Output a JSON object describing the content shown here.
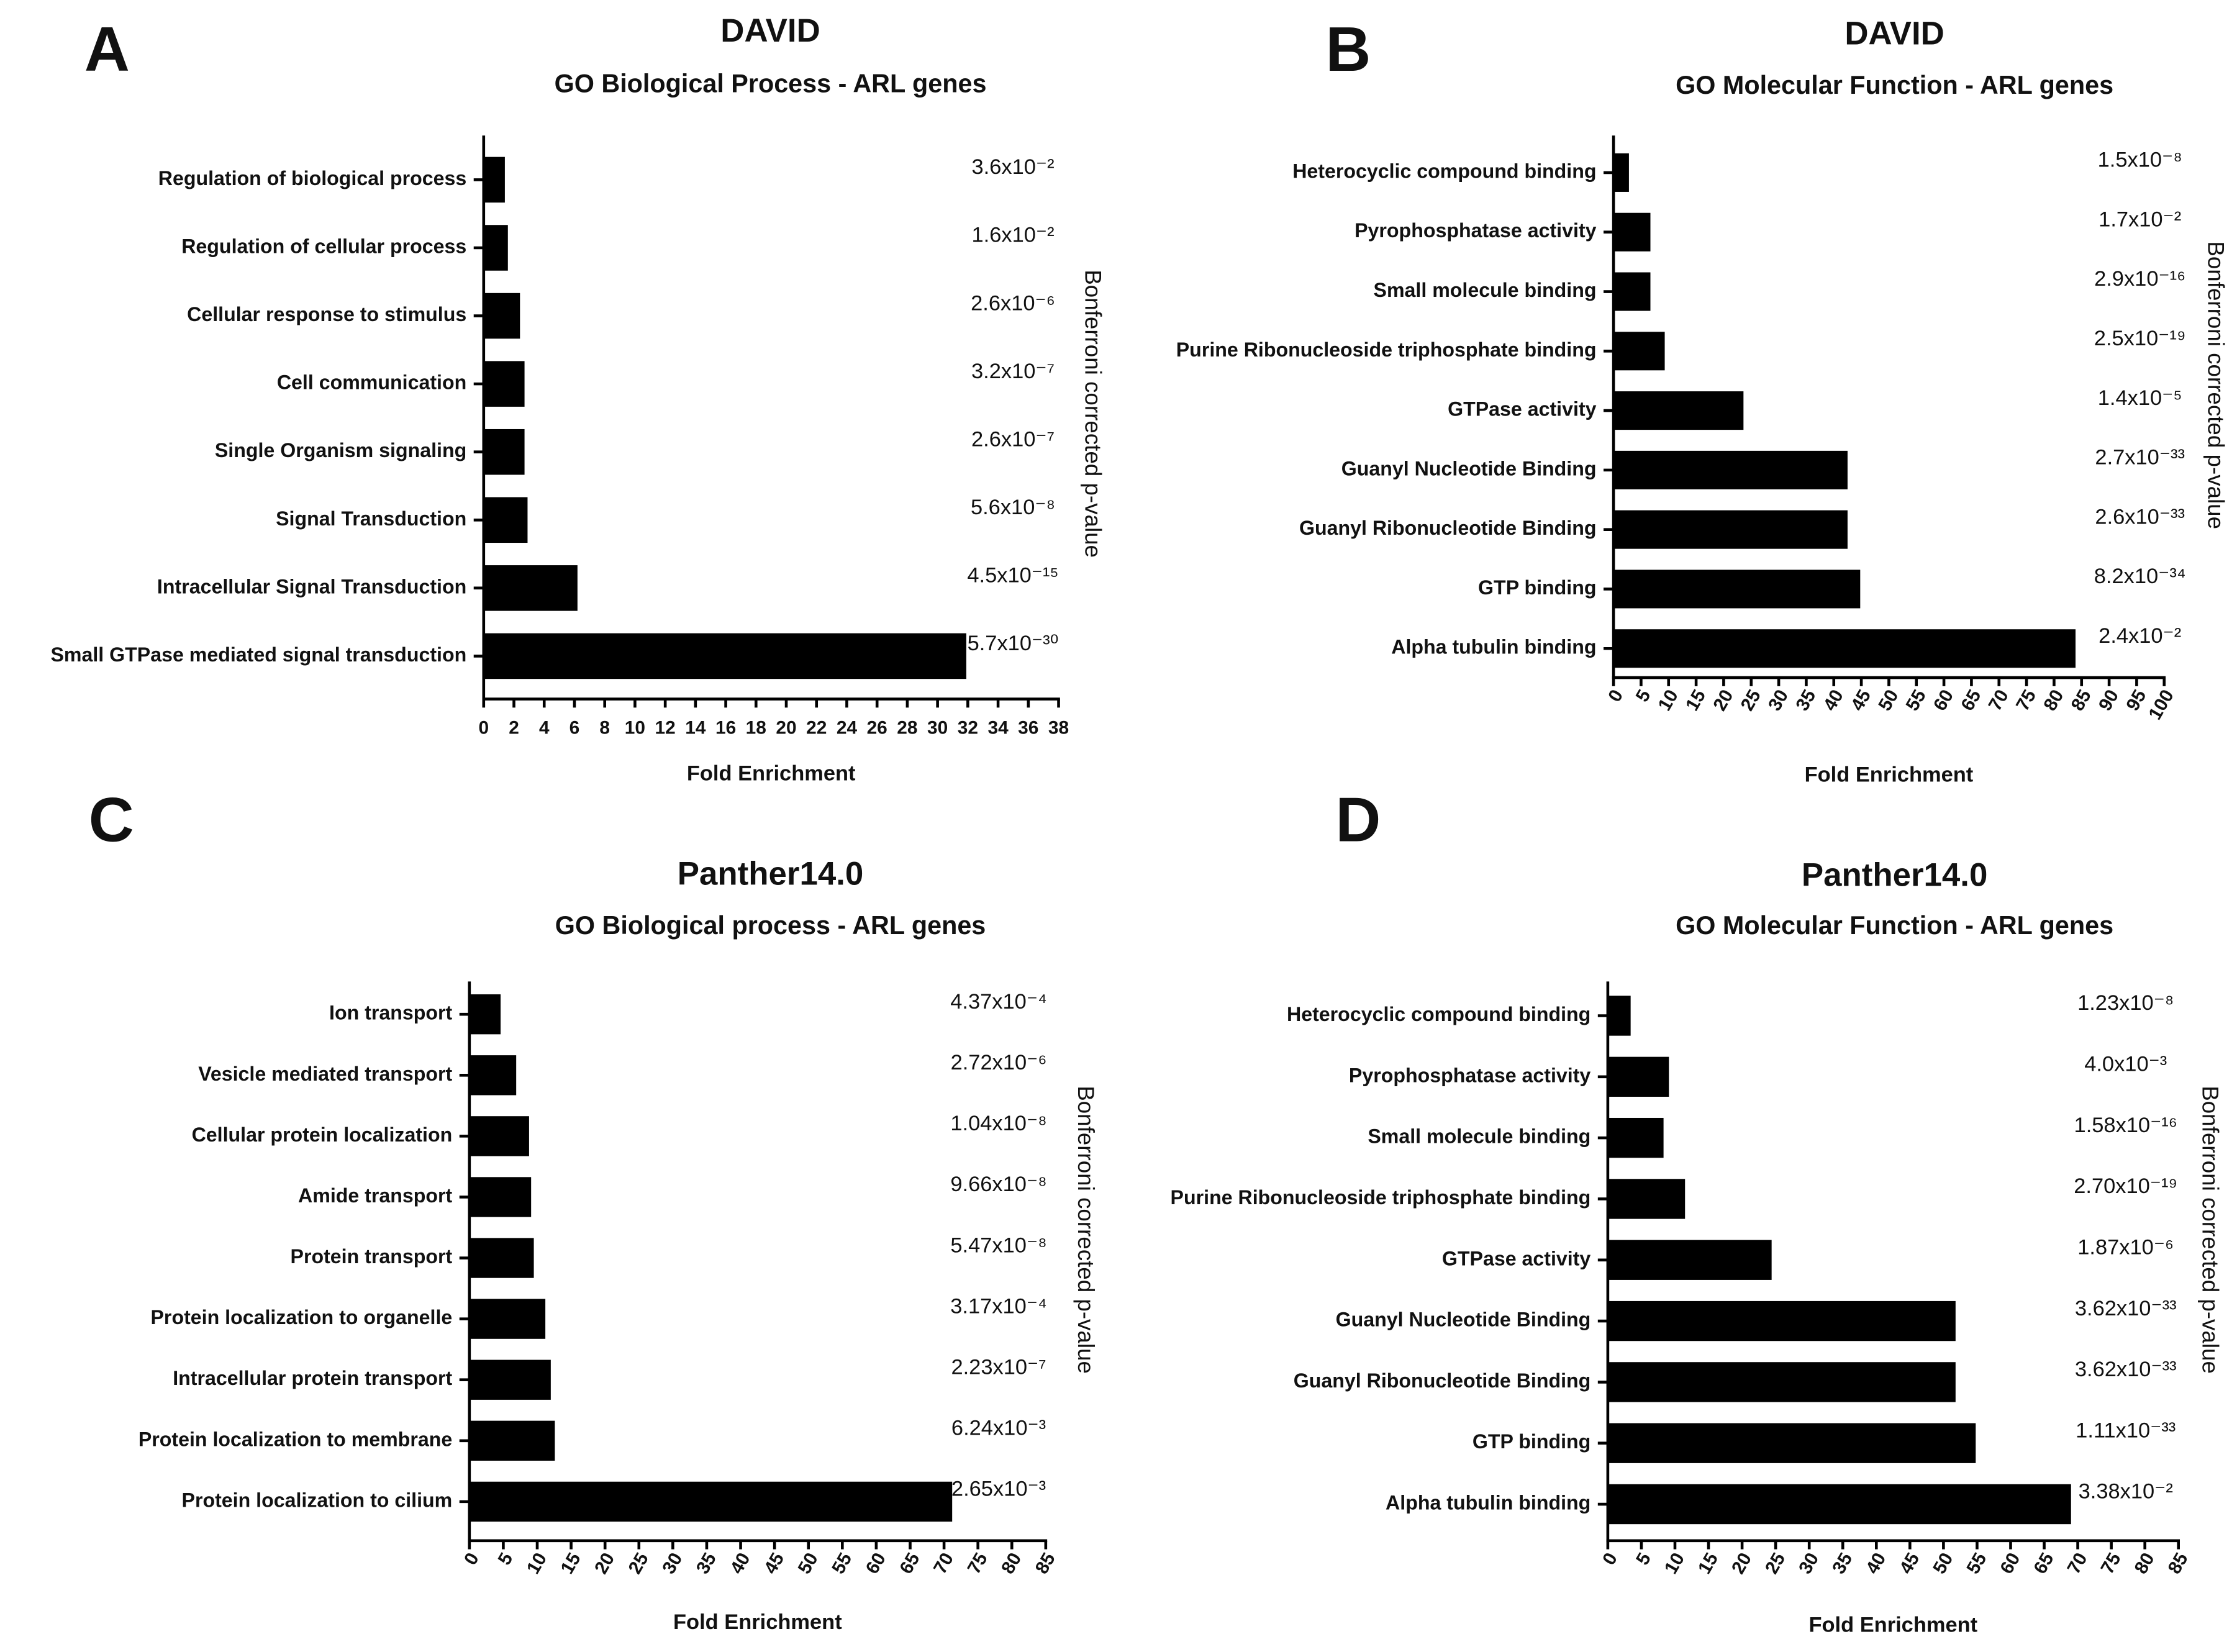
{
  "chart_data": [
    {
      "type": "bar",
      "orientation": "horizontal",
      "panel_label": "A",
      "title": "DAVID",
      "subtitle": "GO Biological Process - ARL genes",
      "x_label": "Fold Enrichment",
      "y2_label": "Bonferroni corrected p-value",
      "color": "#000000",
      "categories": [
        "Regulation of biological process",
        "Regulation of cellular process",
        "Cellular response to stimulus",
        "Cell communication",
        "Single Organism signaling",
        "Signal Transduction",
        "Intracellular Signal Transduction",
        "Small GTPase mediated signal transduction"
      ],
      "values": [
        1.4,
        1.6,
        2.4,
        2.7,
        2.7,
        2.9,
        6.2,
        31.9
      ],
      "p_values": [
        "3.6x10⁻²",
        "1.6x10⁻²",
        "2.6x10⁻⁶",
        "3.2x10⁻⁷",
        "2.6x10⁻⁷",
        "5.6x10⁻⁸",
        "4.5x10⁻¹⁵",
        "5.7x10⁻³⁰"
      ],
      "xlim": [
        0,
        38
      ],
      "xticks": [
        0,
        2,
        4,
        6,
        8,
        10,
        12,
        14,
        16,
        18,
        20,
        22,
        24,
        26,
        28,
        30,
        32,
        34,
        36,
        38
      ]
    },
    {
      "type": "bar",
      "orientation": "horizontal",
      "panel_label": "B",
      "title": "DAVID",
      "subtitle": "GO Molecular Function - ARL genes",
      "x_label": "Fold Enrichment",
      "y2_label": "Bonferroni corrected p-value",
      "color": "#000000",
      "categories": [
        "Heterocyclic compound binding",
        "Pyrophosphatase activity",
        "Small molecule binding",
        "Purine Ribonucleoside triphosphate binding",
        "GTPase activity",
        "Guanyl Nucleotide Binding",
        "Guanyl Ribonucleotide Binding",
        "GTP binding",
        "Alpha tubulin binding"
      ],
      "values": [
        2.8,
        6.7,
        6.7,
        9.3,
        23.6,
        42.5,
        42.5,
        44.8,
        83.9
      ],
      "p_values": [
        "1.5x10⁻⁸",
        "1.7x10⁻²",
        "2.9x10⁻¹⁶",
        "2.5x10⁻¹⁹",
        "1.4x10⁻⁵",
        "2.7x10⁻³³",
        "2.6x10⁻³³",
        "8.2x10⁻³⁴",
        "2.4x10⁻²"
      ],
      "xlim": [
        0,
        100
      ],
      "xticks": [
        0,
        5,
        10,
        15,
        20,
        25,
        30,
        35,
        40,
        45,
        50,
        55,
        60,
        65,
        70,
        75,
        80,
        85,
        90,
        95,
        100
      ]
    },
    {
      "type": "bar",
      "orientation": "horizontal",
      "panel_label": "C",
      "title": "Panther14.0",
      "subtitle": "GO Biological process - ARL genes",
      "x_label": "Fold Enrichment",
      "y2_label": "Bonferroni corrected p-value",
      "color": "#000000",
      "categories": [
        "Ion transport",
        "Vesicle mediated transport",
        "Cellular protein localization",
        "Amide transport",
        "Protein transport",
        "Protein localization to organelle",
        "Intracellular protein transport",
        "Protein localization to membrane",
        "Protein localization to cilium"
      ],
      "values": [
        4.6,
        6.9,
        8.8,
        9.1,
        9.5,
        11.2,
        12.0,
        12.6,
        71.2
      ],
      "p_values": [
        "4.37x10⁻⁴",
        "2.72x10⁻⁶",
        "1.04x10⁻⁸",
        "9.66x10⁻⁸",
        "5.47x10⁻⁸",
        "3.17x10⁻⁴",
        "2.23x10⁻⁷",
        "6.24x10⁻³",
        "2.65x10⁻³"
      ],
      "xlim": [
        0,
        85
      ],
      "xticks": [
        0,
        5,
        10,
        15,
        20,
        25,
        30,
        35,
        40,
        45,
        50,
        55,
        60,
        65,
        70,
        75,
        80,
        85
      ]
    },
    {
      "type": "bar",
      "orientation": "horizontal",
      "panel_label": "D",
      "title": "Panther14.0",
      "subtitle": "GO Molecular Function - ARL genes",
      "x_label": "Fold Enrichment",
      "y2_label": "Bonferroni corrected p-value",
      "color": "#000000",
      "categories": [
        "Heterocyclic compound binding",
        "Pyrophosphatase activity",
        "Small molecule binding",
        "Purine Ribonucleoside triphosphate binding",
        "GTPase activity",
        "Guanyl Nucleotide Binding",
        "Guanyl Ribonucleotide Binding",
        "GTP binding",
        "Alpha tubulin binding"
      ],
      "values": [
        3.4,
        9.1,
        8.3,
        11.5,
        24.4,
        51.8,
        51.8,
        54.8,
        69.0
      ],
      "p_values": [
        "1.23x10⁻⁸",
        "4.0x10⁻³",
        "1.58x10⁻¹⁶",
        "2.70x10⁻¹⁹",
        "1.87x10⁻⁶",
        "3.62x10⁻³³",
        "3.62x10⁻³³",
        "1.11x10⁻³³",
        "3.38x10⁻²"
      ],
      "xlim": [
        0,
        85
      ],
      "xticks": [
        0,
        5,
        10,
        15,
        20,
        25,
        30,
        35,
        40,
        45,
        50,
        55,
        60,
        65,
        70,
        75,
        80,
        85
      ]
    }
  ]
}
